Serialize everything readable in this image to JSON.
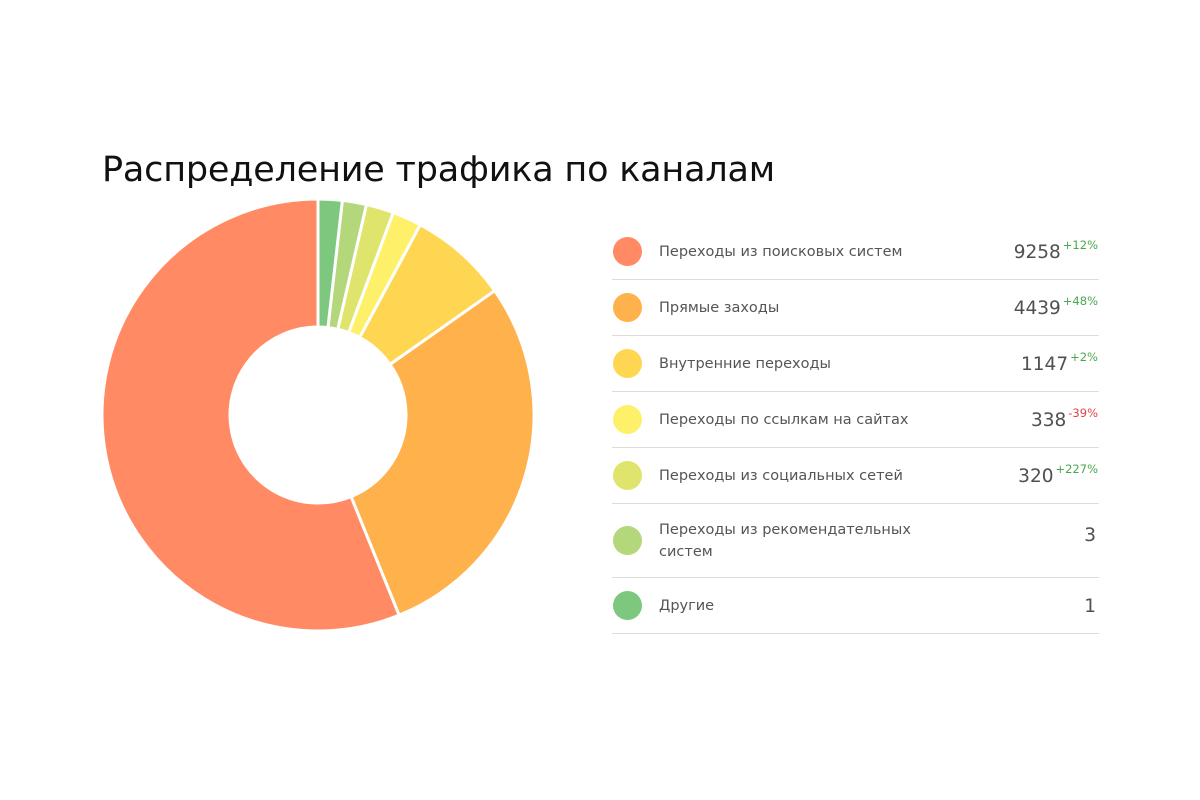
{
  "title": "Распределение трафика по каналам",
  "chart_data": {
    "type": "pie",
    "title": "Распределение трафика по каналам",
    "slices": [
      {
        "label": "Переходы из поисковых систем",
        "value": 9258,
        "change": "+12%",
        "color": "#ff8a63"
      },
      {
        "label": "Прямые заходы",
        "value": 4439,
        "change": "+48%",
        "color": "#ffb24b"
      },
      {
        "label": "Внутренние переходы",
        "value": 1147,
        "change": "+2%",
        "color": "#ffd651"
      },
      {
        "label": "Переходы по ссылкам на сайтах",
        "value": 338,
        "change": "-39%",
        "color": "#fff06a"
      },
      {
        "label": "Переходы из социальных сетей",
        "value": 320,
        "change": "+227%",
        "color": "#dfe56c"
      },
      {
        "label": "Переходы из рекомендательных систем",
        "value": 3,
        "change": "",
        "color": "#b3d77a"
      },
      {
        "label": "Другие",
        "value": 1,
        "change": "",
        "color": "#7dc77e"
      }
    ]
  }
}
